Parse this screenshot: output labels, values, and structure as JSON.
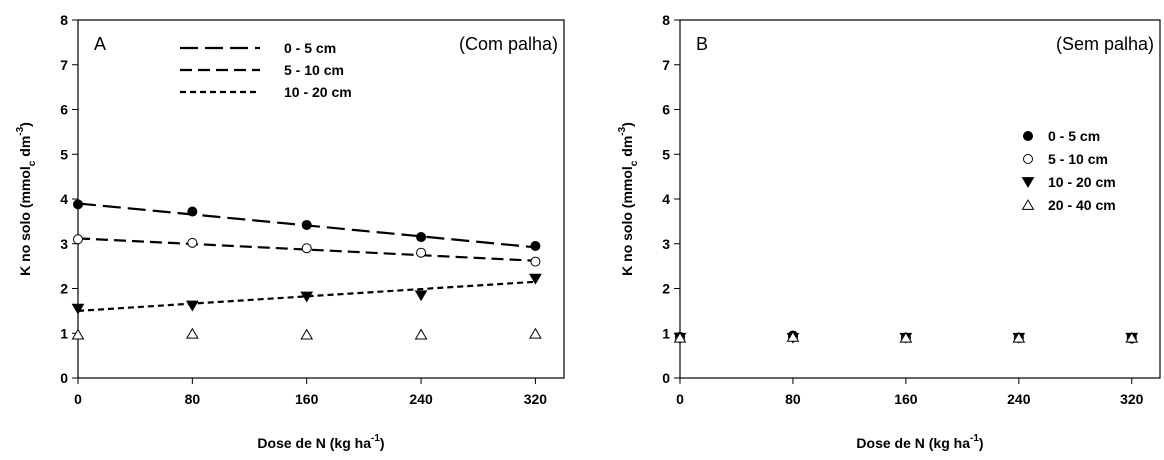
{
  "chart_data": [
    {
      "type": "scatter",
      "panel_label": "A",
      "annotation": "(Com palha)",
      "xlabel": {
        "main": "Dose de N (kg ha",
        "sup": "-1",
        "end": ")"
      },
      "ylabel": {
        "main": "K no solo (mmol",
        "sub": "c",
        "mid": " dm",
        "sup": "-3",
        "end": ")"
      },
      "xlim": [
        0,
        340
      ],
      "ylim": [
        0,
        8
      ],
      "xticks": [
        0,
        80,
        160,
        240,
        320
      ],
      "yticks": [
        0,
        1,
        2,
        3,
        4,
        5,
        6,
        7,
        8
      ],
      "legend_position": "top-center",
      "legend": [
        {
          "label": "0 - 5 cm",
          "style": "long-dash"
        },
        {
          "label": "5 - 10 cm",
          "style": "medium-dash"
        },
        {
          "label": "10 - 20 cm",
          "style": "short-dash"
        }
      ],
      "x": [
        0,
        80,
        160,
        240,
        320
      ],
      "series": [
        {
          "marker": "circle-filled",
          "values": [
            3.88,
            3.72,
            3.42,
            3.15,
            2.95
          ],
          "fit": [
            3.9,
            2.92
          ],
          "fit_style": "long-dash"
        },
        {
          "marker": "circle-open",
          "values": [
            3.1,
            3.02,
            2.9,
            2.8,
            2.6
          ],
          "fit": [
            3.12,
            2.62
          ],
          "fit_style": "medium-dash"
        },
        {
          "marker": "triangle-down-filled",
          "values": [
            1.55,
            1.62,
            1.82,
            1.85,
            2.22
          ],
          "fit": [
            1.5,
            2.15
          ],
          "fit_style": "short-dash"
        },
        {
          "marker": "triangle-up-open",
          "values": [
            0.97,
            0.99,
            0.97,
            0.97,
            0.99
          ]
        }
      ]
    },
    {
      "type": "scatter",
      "panel_label": "B",
      "annotation": "(Sem palha)",
      "xlabel": {
        "main": "Dose de N (kg ha",
        "sup": "-1",
        "end": ")"
      },
      "ylabel": {
        "main": "K no solo (mmol",
        "sub": "c",
        "mid": " dm",
        "sup": "-3",
        "end": ")"
      },
      "xlim": [
        0,
        340
      ],
      "ylim": [
        0,
        8
      ],
      "xticks": [
        0,
        80,
        160,
        240,
        320
      ],
      "yticks": [
        0,
        1,
        2,
        3,
        4,
        5,
        6,
        7,
        8
      ],
      "legend_position": "right",
      "legend": [
        {
          "label": "0 - 5 cm",
          "marker": "circle-filled"
        },
        {
          "label": "5 - 10 cm",
          "marker": "circle-open"
        },
        {
          "label": "10 - 20 cm",
          "marker": "triangle-down-filled"
        },
        {
          "label": "20 - 40 cm",
          "marker": "triangle-up-open"
        }
      ],
      "x": [
        0,
        80,
        160,
        240,
        320
      ],
      "series": [
        {
          "marker": "circle-filled",
          "values": [
            0.92,
            0.95,
            0.9,
            0.9,
            0.9
          ]
        },
        {
          "marker": "circle-open",
          "values": [
            0.9,
            0.92,
            0.9,
            0.9,
            0.88
          ]
        },
        {
          "marker": "triangle-down-filled",
          "values": [
            0.9,
            0.9,
            0.9,
            0.9,
            0.9
          ]
        },
        {
          "marker": "triangle-up-open",
          "values": [
            0.9,
            0.92,
            0.9,
            0.9,
            0.9
          ]
        }
      ]
    }
  ]
}
